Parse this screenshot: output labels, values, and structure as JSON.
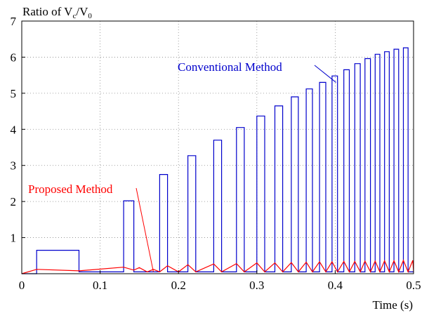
{
  "chart_data": {
    "type": "line",
    "title": "",
    "ylabel_prefix": "Ratio of V",
    "ylabel_sub1": "c",
    "ylabel_mid": "/V",
    "ylabel_sub2": "0",
    "xlabel": "Time (s)",
    "xlim": [
      0,
      0.5
    ],
    "ylim": [
      0,
      7
    ],
    "xticks": [
      0,
      0.1,
      0.2,
      0.3,
      0.4,
      0.5
    ],
    "xtick_labels": [
      "0",
      "0.1",
      "0.2",
      "0.3",
      "0.4",
      "0.5"
    ],
    "yticks": [
      1,
      2,
      3,
      4,
      5,
      6,
      7
    ],
    "ytick_labels": [
      "1",
      "2",
      "3",
      "4",
      "5",
      "6",
      "7"
    ],
    "grid": true,
    "series": [
      {
        "name": "Conventional Method",
        "color": "#0000cc",
        "x": [
          0,
          0.019,
          0.019,
          0.073,
          0.073,
          0.13,
          0.13,
          0.143,
          0.143,
          0.176,
          0.176,
          0.186,
          0.186,
          0.212,
          0.212,
          0.222,
          0.222,
          0.245,
          0.245,
          0.255,
          0.255,
          0.274,
          0.274,
          0.284,
          0.284,
          0.3,
          0.3,
          0.31,
          0.31,
          0.323,
          0.323,
          0.333,
          0.333,
          0.344,
          0.344,
          0.353,
          0.353,
          0.363,
          0.363,
          0.371,
          0.371,
          0.38,
          0.38,
          0.388,
          0.388,
          0.396,
          0.396,
          0.403,
          0.403,
          0.411,
          0.411,
          0.418,
          0.418,
          0.425,
          0.425,
          0.432,
          0.432,
          0.438,
          0.438,
          0.445,
          0.445,
          0.451,
          0.451,
          0.457,
          0.457,
          0.463,
          0.463,
          0.469,
          0.469,
          0.475,
          0.475,
          0.481,
          0.481,
          0.487,
          0.487,
          0.493,
          0.493,
          0.499,
          0.499,
          0.5
        ],
        "y": [
          0,
          0,
          0.65,
          0.65,
          0.05,
          0.05,
          2.02,
          2.02,
          0.05,
          0.05,
          2.75,
          2.75,
          0.05,
          0.05,
          3.27,
          3.27,
          0.05,
          0.05,
          3.7,
          3.7,
          0.05,
          0.05,
          4.05,
          4.05,
          0.05,
          0.05,
          4.37,
          4.37,
          0.05,
          0.05,
          4.65,
          4.65,
          0.05,
          0.05,
          4.9,
          4.9,
          0.05,
          0.05,
          5.12,
          5.12,
          0.05,
          0.05,
          5.3,
          5.3,
          0.05,
          0.05,
          5.48,
          5.48,
          0.05,
          0.05,
          5.65,
          5.65,
          0.05,
          0.05,
          5.82,
          5.82,
          0.05,
          0.05,
          5.96,
          5.96,
          0.05,
          0.05,
          6.08,
          6.08,
          0.05,
          0.05,
          6.15,
          6.15,
          0.05,
          0.05,
          6.22,
          6.22,
          0.05,
          0.05,
          6.26,
          6.26,
          0.05,
          0.05,
          0.05,
          0.05
        ]
      },
      {
        "name": "Proposed Method",
        "color": "#ff0000",
        "x": [
          0,
          0.019,
          0.073,
          0.13,
          0.143,
          0.15,
          0.16,
          0.168,
          0.176,
          0.186,
          0.2,
          0.212,
          0.222,
          0.245,
          0.255,
          0.274,
          0.284,
          0.3,
          0.31,
          0.323,
          0.333,
          0.344,
          0.353,
          0.363,
          0.371,
          0.38,
          0.388,
          0.396,
          0.403,
          0.411,
          0.418,
          0.425,
          0.432,
          0.438,
          0.445,
          0.451,
          0.457,
          0.463,
          0.469,
          0.475,
          0.481,
          0.487,
          0.493,
          0.499,
          0.5
        ],
        "y": [
          0,
          0.12,
          0.08,
          0.18,
          0.1,
          0.17,
          0.05,
          0.12,
          0.05,
          0.22,
          0.05,
          0.25,
          0.05,
          0.27,
          0.05,
          0.28,
          0.05,
          0.3,
          0.05,
          0.3,
          0.05,
          0.31,
          0.05,
          0.32,
          0.05,
          0.33,
          0.05,
          0.33,
          0.05,
          0.34,
          0.05,
          0.34,
          0.05,
          0.35,
          0.05,
          0.35,
          0.05,
          0.36,
          0.05,
          0.36,
          0.05,
          0.37,
          0.05,
          0.37,
          0.05
        ]
      }
    ],
    "annotations": [
      {
        "text": "Conventional Method",
        "color": "#0000cc",
        "target_x": 0.401,
        "target_y": 5.3
      },
      {
        "text": "Proposed Method",
        "color": "#ff0000",
        "target_x": 0.168,
        "target_y": 0.05
      }
    ]
  }
}
